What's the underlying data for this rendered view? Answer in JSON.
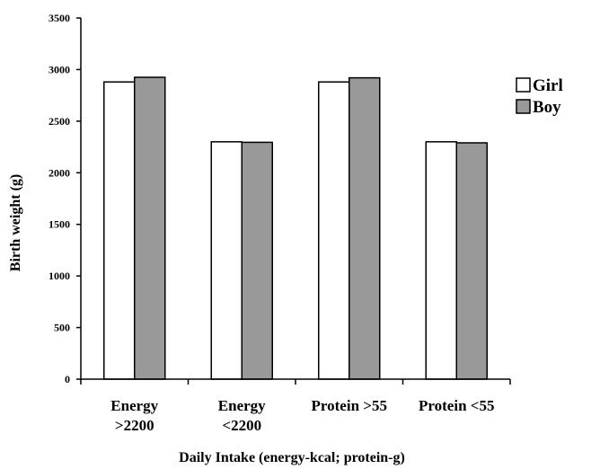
{
  "chart_data": {
    "type": "bar",
    "categories": [
      [
        "Energy",
        ">2200"
      ],
      [
        "Energy",
        "<2200"
      ],
      [
        "Protein >55"
      ],
      [
        "Protein <55"
      ]
    ],
    "series": [
      {
        "name": "Girl",
        "values": [
          2880,
          2300,
          2880,
          2300
        ],
        "color": "#ffffff"
      },
      {
        "name": "Boy",
        "values": [
          2925,
          2295,
          2920,
          2290
        ],
        "color": "#999999"
      }
    ],
    "xlabel": "Daily Intake (energy-kcal; protein-g)",
    "ylabel": "Birth weight (g)",
    "ylim": [
      0,
      3500
    ],
    "yticks": [
      0,
      500,
      1000,
      1500,
      2000,
      2500,
      3000,
      3500
    ],
    "grid": false,
    "legend_position": "right"
  }
}
